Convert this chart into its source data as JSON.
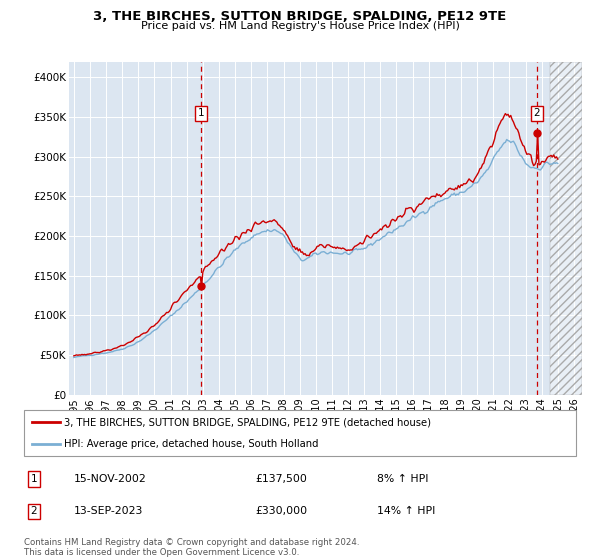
{
  "title": "3, THE BIRCHES, SUTTON BRIDGE, SPALDING, PE12 9TE",
  "subtitle": "Price paid vs. HM Land Registry's House Price Index (HPI)",
  "ylabel_ticks": [
    "£0",
    "£50K",
    "£100K",
    "£150K",
    "£200K",
    "£250K",
    "£300K",
    "£350K",
    "£400K"
  ],
  "ytick_values": [
    0,
    50000,
    100000,
    150000,
    200000,
    250000,
    300000,
    350000,
    400000
  ],
  "ylim": [
    0,
    420000
  ],
  "xlim_start": 1994.7,
  "xlim_end": 2026.5,
  "xtick_years": [
    1995,
    1996,
    1997,
    1998,
    1999,
    2000,
    2001,
    2002,
    2003,
    2004,
    2005,
    2006,
    2007,
    2008,
    2009,
    2010,
    2011,
    2012,
    2013,
    2014,
    2015,
    2016,
    2017,
    2018,
    2019,
    2020,
    2021,
    2022,
    2023,
    2024,
    2025,
    2026
  ],
  "plot_bg": "#dce6f1",
  "line1_color": "#cc0000",
  "line2_color": "#7bafd4",
  "line1_label": "3, THE BIRCHES, SUTTON BRIDGE, SPALDING, PE12 9TE (detached house)",
  "line2_label": "HPI: Average price, detached house, South Holland",
  "sale1_x": 2002.88,
  "sale1_y": 137500,
  "sale1_label": "1",
  "sale2_x": 2023.71,
  "sale2_y": 330000,
  "sale2_label": "2",
  "annotation1_date": "15-NOV-2002",
  "annotation1_price": "£137,500",
  "annotation1_hpi": "8% ↑ HPI",
  "annotation2_date": "13-SEP-2023",
  "annotation2_price": "£330,000",
  "annotation2_hpi": "14% ↑ HPI",
  "footer1": "Contains HM Land Registry data © Crown copyright and database right 2024.",
  "footer2": "This data is licensed under the Open Government Licence v3.0.",
  "hatched_region_start": 2024.5,
  "hatched_region_end": 2026.5
}
